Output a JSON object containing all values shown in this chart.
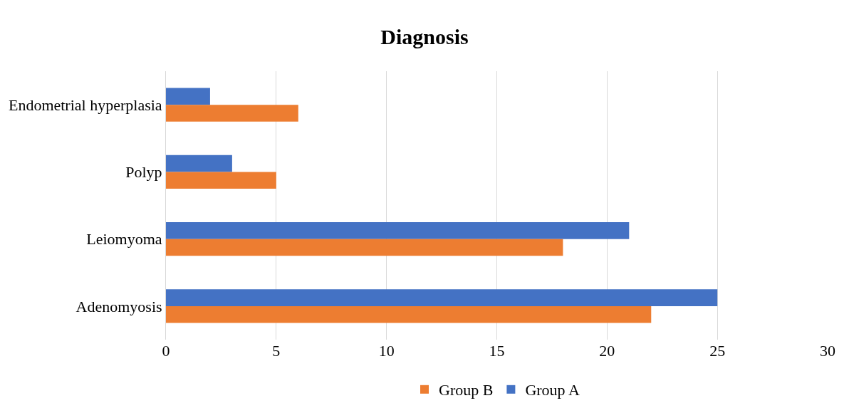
{
  "chart_data": {
    "type": "bar",
    "orientation": "horizontal",
    "title": "Diagnosis",
    "categories": [
      "Endometrial hyperplasia",
      "Polyp",
      "Leiomyoma",
      "Adenomyosis"
    ],
    "series": [
      {
        "name": "Group B",
        "color": "#ed7d31",
        "values": [
          6,
          5,
          18,
          22
        ]
      },
      {
        "name": "Group A",
        "color": "#4472c4",
        "values": [
          2,
          3,
          21,
          25
        ]
      }
    ],
    "xlim": [
      0,
      30
    ],
    "xticks": [
      0,
      5,
      10,
      15,
      20,
      25,
      30
    ],
    "grid": "x",
    "legend": "bottom"
  }
}
